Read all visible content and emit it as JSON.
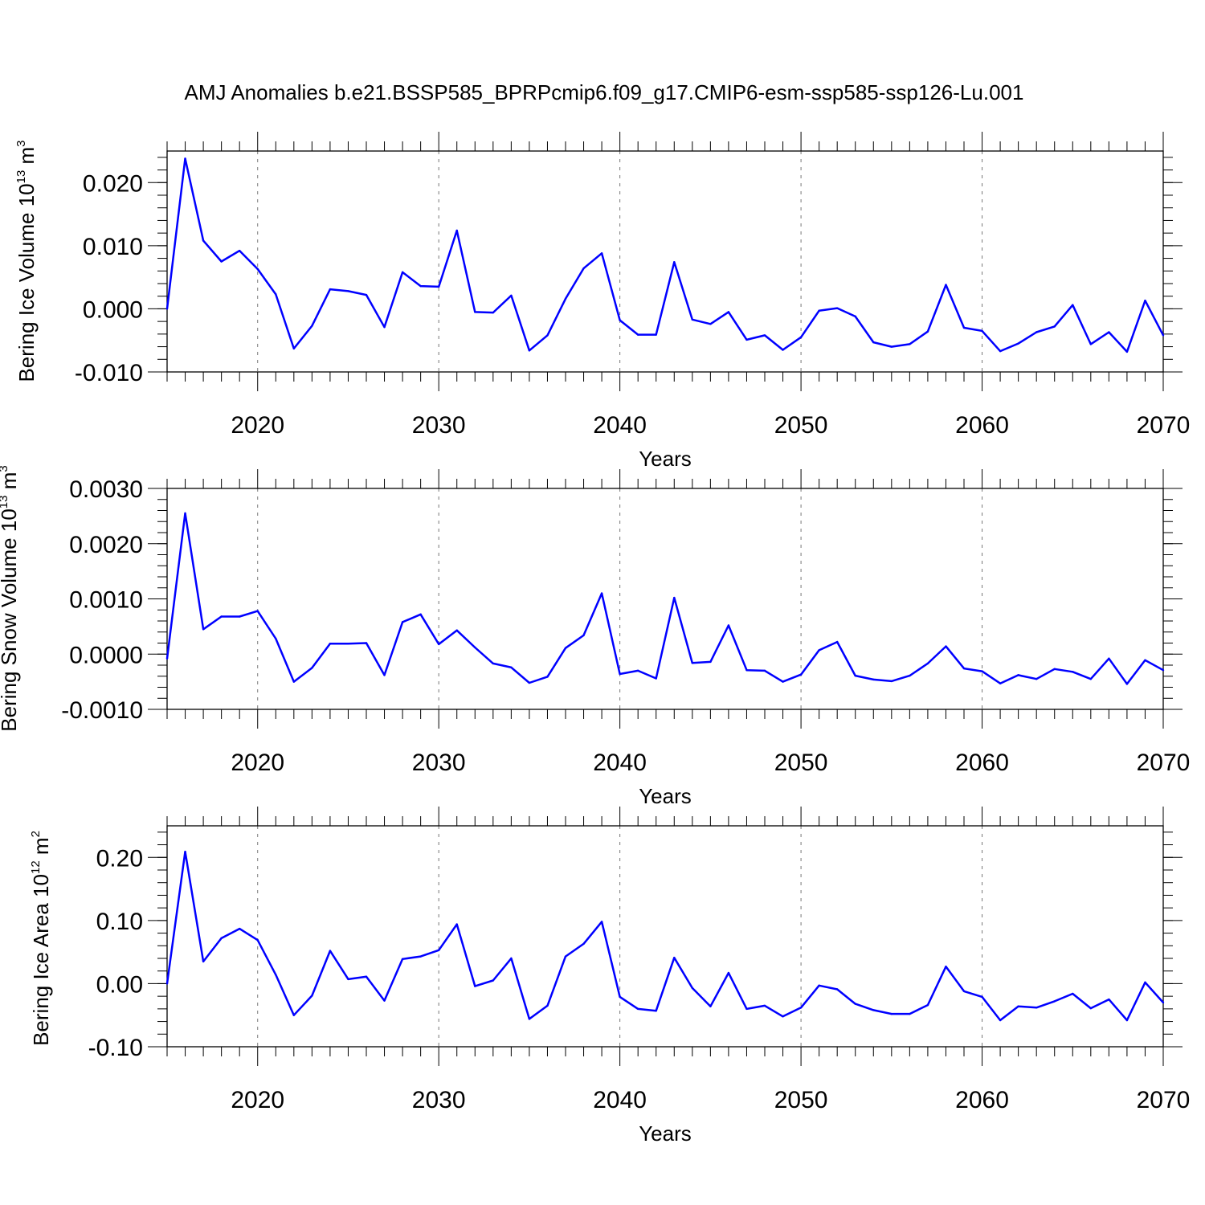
{
  "chart_data": {
    "title": "AMJ Anomalies b.e21.BSSP585_BPRPcmip6.f09_g17.CMIP6-esm-ssp585-ssp126-Lu.001",
    "line_color": "#0000ff",
    "years": [
      2015,
      2016,
      2017,
      2018,
      2019,
      2020,
      2021,
      2022,
      2023,
      2024,
      2025,
      2026,
      2027,
      2028,
      2029,
      2030,
      2031,
      2032,
      2033,
      2034,
      2035,
      2036,
      2037,
      2038,
      2039,
      2040,
      2041,
      2042,
      2043,
      2044,
      2045,
      2046,
      2047,
      2048,
      2049,
      2050,
      2051,
      2052,
      2053,
      2054,
      2055,
      2056,
      2057,
      2058,
      2059,
      2060,
      2061,
      2062,
      2063,
      2064,
      2065,
      2066,
      2067,
      2068,
      2069,
      2070
    ],
    "xlim": [
      2015,
      2070
    ],
    "x_ticks": [
      "2020",
      "2030",
      "2040",
      "2050",
      "2060",
      "2070"
    ],
    "panels": [
      {
        "type": "line",
        "ylabel_text": "Bering Ice Volume 10",
        "ylabel_exp": "13",
        "ylabel_unit": " m",
        "ylabel_unit_exp": "3",
        "xlabel": "Years",
        "ylim": [
          -0.01,
          0.025
        ],
        "y_tick_values": [
          -0.01,
          0.0,
          0.01,
          0.02
        ],
        "y_tick_labels": [
          "-0.010",
          "0.000",
          "0.010",
          "0.020"
        ],
        "values": [
          0.0,
          0.0238,
          0.0108,
          0.0075,
          0.0092,
          0.0063,
          0.0023,
          -0.0063,
          -0.0027,
          0.0031,
          0.0028,
          0.0022,
          -0.0029,
          0.0058,
          0.0036,
          0.0035,
          0.0124,
          -0.0005,
          -0.0006,
          0.0021,
          -0.0066,
          -0.0042,
          0.0016,
          0.0064,
          0.0088,
          -0.0018,
          -0.0041,
          -0.0041,
          0.0074,
          -0.0017,
          -0.0024,
          -0.0005,
          -0.0049,
          -0.0042,
          -0.0065,
          -0.0045,
          -0.0003,
          0.0001,
          -0.0012,
          -0.0053,
          -0.006,
          -0.0056,
          -0.0036,
          0.0038,
          -0.003,
          -0.0035,
          -0.0067,
          -0.0055,
          -0.0037,
          -0.0028,
          0.0006,
          -0.0056,
          -0.0037,
          -0.0068,
          0.0013,
          -0.0042
        ]
      },
      {
        "type": "line",
        "ylabel_text": "Bering Snow Volume 10",
        "ylabel_exp": "13",
        "ylabel_unit": " m",
        "ylabel_unit_exp": "3",
        "xlabel": "Years",
        "ylim": [
          -0.001,
          0.003
        ],
        "y_tick_values": [
          -0.001,
          0.0,
          0.001,
          0.002,
          0.003
        ],
        "y_tick_labels": [
          "-0.0010",
          "0.0000",
          "0.0010",
          "0.0020",
          "0.0030"
        ],
        "values": [
          -8e-05,
          0.00255,
          0.00045,
          0.00068,
          0.00068,
          0.00078,
          0.00028,
          -0.0005,
          -0.00025,
          0.00019,
          0.00019,
          0.0002,
          -0.00038,
          0.00058,
          0.00072,
          0.00018,
          0.00043,
          0.00012,
          -0.00017,
          -0.00024,
          -0.00052,
          -0.00041,
          0.00011,
          0.00034,
          0.0011,
          -0.00036,
          -0.0003,
          -0.00044,
          0.00102,
          -0.00016,
          -0.00014,
          0.00052,
          -0.00029,
          -0.0003,
          -0.0005,
          -0.00037,
          7e-05,
          0.00022,
          -0.00039,
          -0.00046,
          -0.00049,
          -0.00039,
          -0.00017,
          0.00014,
          -0.00026,
          -0.00031,
          -0.00053,
          -0.00038,
          -0.00045,
          -0.00027,
          -0.00032,
          -0.00045,
          -8e-05,
          -0.00054,
          -0.00011,
          -0.00029
        ]
      },
      {
        "type": "line",
        "ylabel_text": "Bering Ice Area 10",
        "ylabel_exp": "12",
        "ylabel_unit": " m",
        "ylabel_unit_exp": "2",
        "xlabel": "Years",
        "ylim": [
          -0.1,
          0.25
        ],
        "y_tick_values": [
          -0.1,
          0.0,
          0.1,
          0.2
        ],
        "y_tick_labels": [
          "-0.10",
          "0.00",
          "0.10",
          "0.20"
        ],
        "values": [
          0.0,
          0.209,
          0.035,
          0.072,
          0.087,
          0.069,
          0.014,
          -0.05,
          -0.019,
          0.052,
          0.007,
          0.011,
          -0.027,
          0.039,
          0.043,
          0.053,
          0.094,
          -0.004,
          0.005,
          0.04,
          -0.056,
          -0.035,
          0.043,
          0.063,
          0.098,
          -0.021,
          -0.04,
          -0.043,
          0.041,
          -0.007,
          -0.036,
          0.017,
          -0.04,
          -0.035,
          -0.052,
          -0.038,
          -0.003,
          -0.009,
          -0.032,
          -0.042,
          -0.048,
          -0.048,
          -0.034,
          0.027,
          -0.012,
          -0.021,
          -0.058,
          -0.036,
          -0.038,
          -0.028,
          -0.016,
          -0.039,
          -0.025,
          -0.058,
          0.002,
          -0.03
        ]
      }
    ]
  }
}
